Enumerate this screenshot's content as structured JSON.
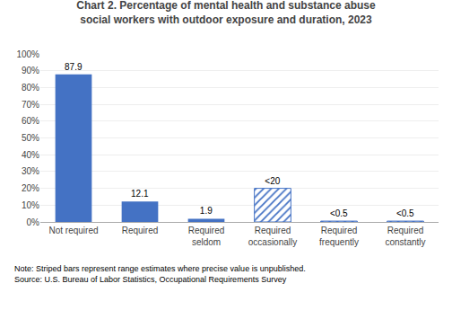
{
  "chart_data": {
    "type": "bar",
    "title": "Chart 2. Percentage of mental health and substance abuse\nsocial workers with outdoor exposure and duration, 2023",
    "categories": [
      "Not required",
      "Required",
      "Required\nseldom",
      "Required\noccasionally",
      "Required\nfrequently",
      "Required\nconstantly"
    ],
    "series": [
      {
        "values": [
          87.9,
          12.1,
          1.9,
          null,
          null,
          null
        ],
        "value_labels": [
          "87.9",
          "12.1",
          "1.9",
          null,
          null,
          null
        ],
        "color": "#4472C4",
        "marker": "solid"
      },
      {
        "values": [
          null,
          null,
          null,
          20.0,
          0.5,
          0.5
        ],
        "value_labels": [
          null,
          null,
          null,
          "<20",
          "<0.5",
          "<0.5"
        ],
        "color": "#4472C4",
        "marker": "striped"
      }
    ],
    "data_labels": true,
    "ylim": [
      0,
      100
    ],
    "yticks": [
      {
        "value": 0,
        "label": "0%"
      },
      {
        "value": 10,
        "label": "10%"
      },
      {
        "value": 20,
        "label": "20%"
      },
      {
        "value": 30,
        "label": "30%"
      },
      {
        "value": 40,
        "label": "40%"
      },
      {
        "value": 50,
        "label": "50%"
      },
      {
        "value": 60,
        "label": "60%"
      },
      {
        "value": 70,
        "label": "70%"
      },
      {
        "value": 80,
        "label": "80%"
      },
      {
        "value": 90,
        "label": "90%"
      },
      {
        "value": 100,
        "label": "100%"
      }
    ],
    "grid": true,
    "annotations": [
      "Note: Striped bars represent range estimates where precise value is unpublished.\nSource: U.S. Bureau of Labor Statistics, Occupational Requirements Survey"
    ]
  }
}
